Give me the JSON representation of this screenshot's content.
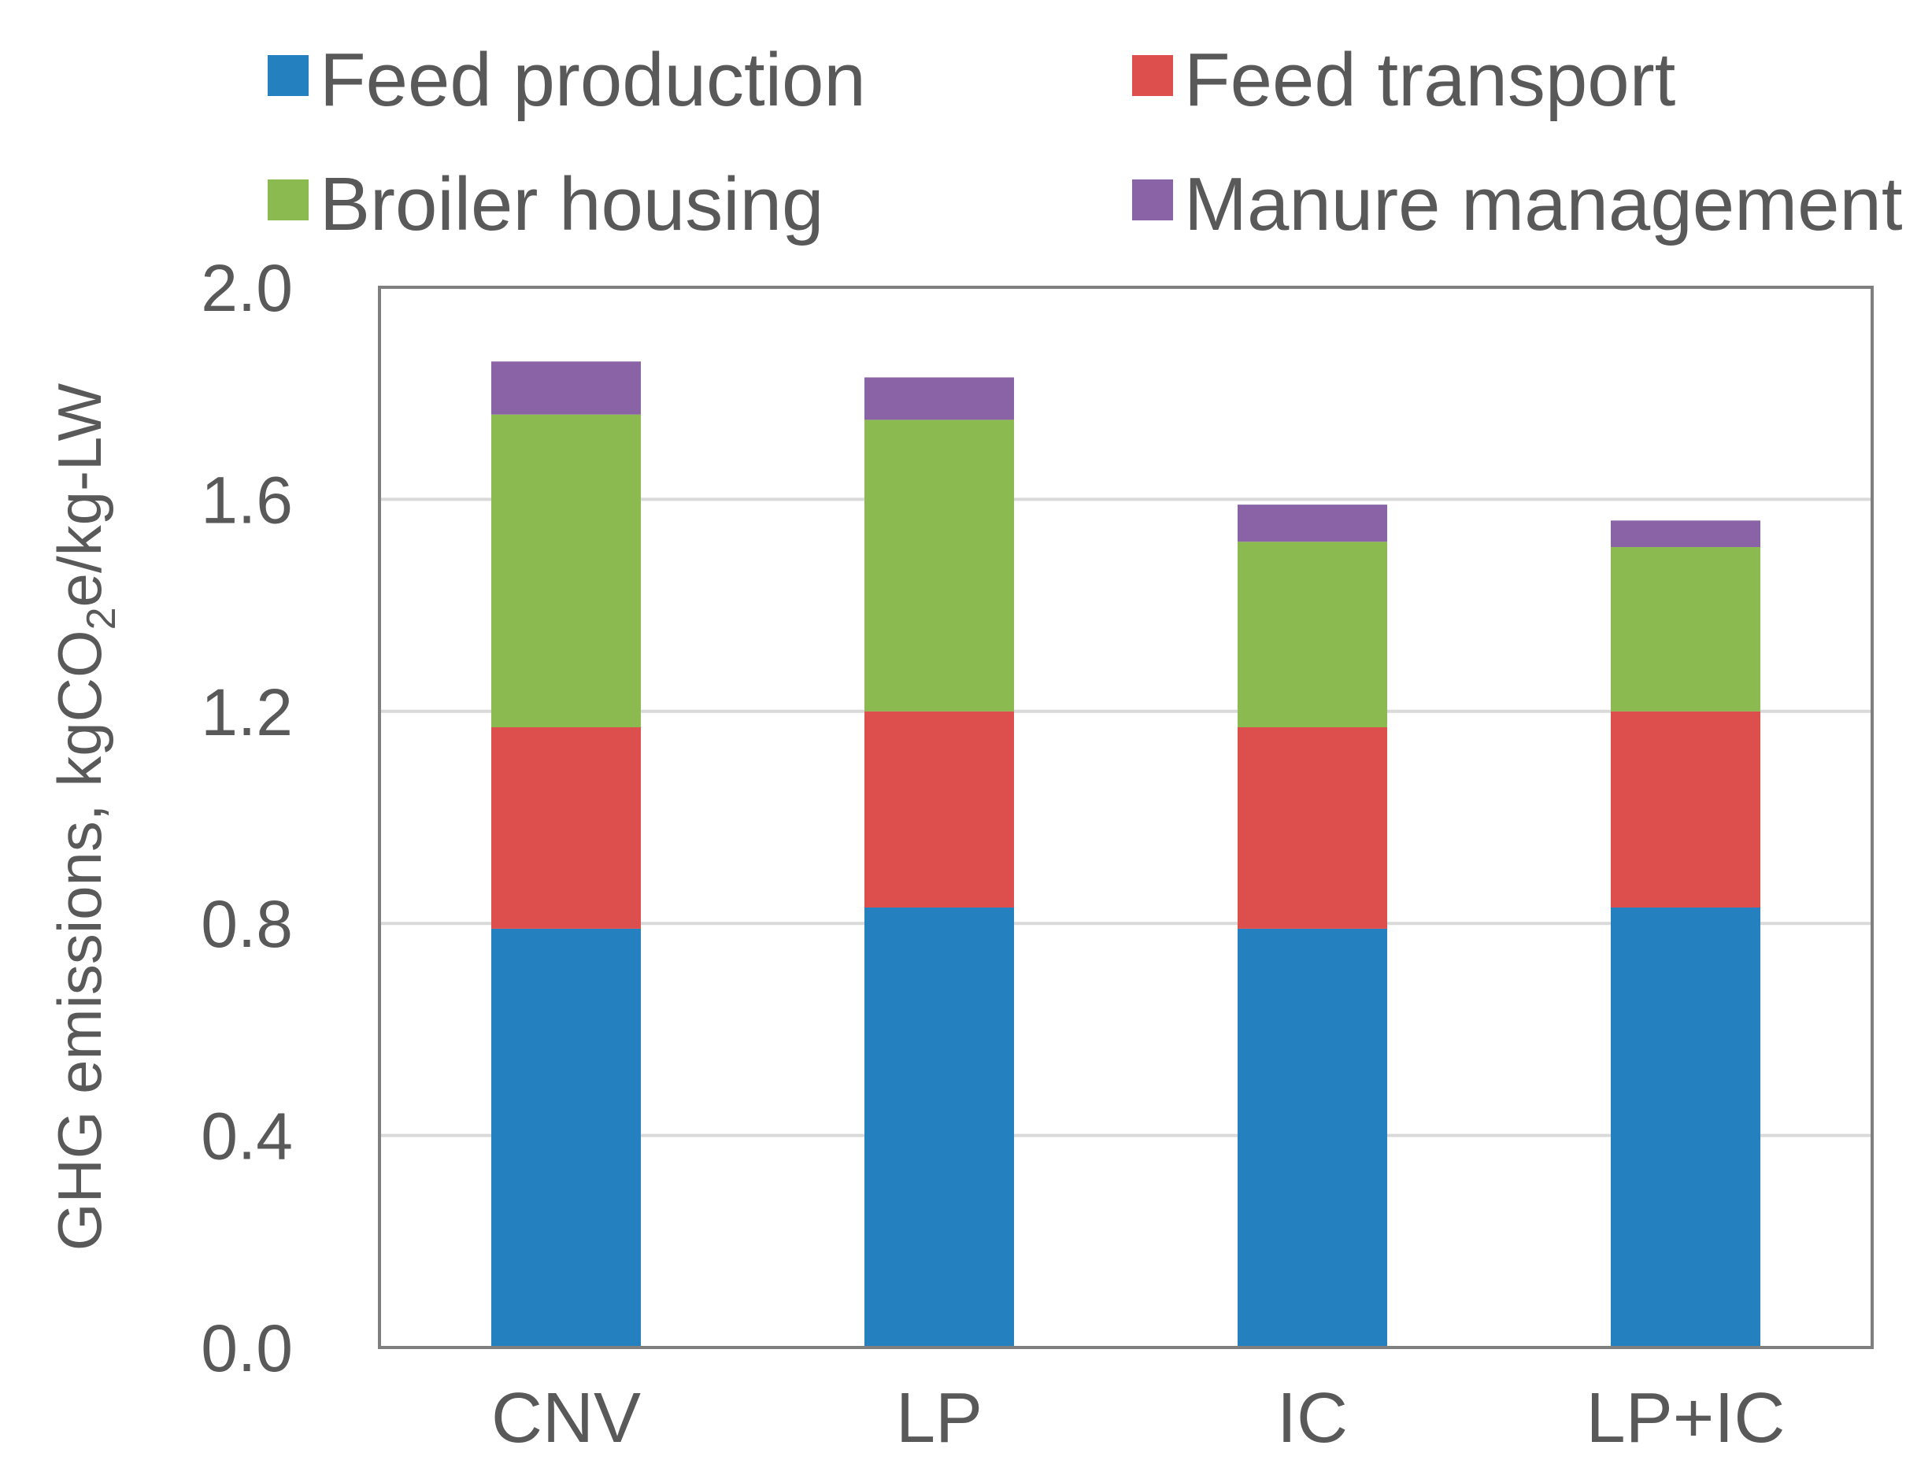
{
  "chart_data": {
    "type": "bar",
    "stacked": true,
    "categories": [
      "CNV",
      "LP",
      "IC",
      "LP+IC"
    ],
    "series": [
      {
        "name": "Feed production",
        "color": "#2580C0",
        "values": [
          0.79,
          0.83,
          0.79,
          0.83
        ]
      },
      {
        "name": "Feed transport",
        "color": "#DD4F4D",
        "values": [
          0.38,
          0.37,
          0.38,
          0.37
        ]
      },
      {
        "name": "Broiler housing",
        "color": "#8BBA50",
        "values": [
          0.59,
          0.55,
          0.35,
          0.31
        ]
      },
      {
        "name": "Manure management",
        "color": "#8963A5",
        "values": [
          0.1,
          0.08,
          0.07,
          0.05
        ]
      }
    ],
    "ylabel_parts": {
      "main": "GHG emissions, kgCO",
      "sub": "2",
      "tail": "e/kg-LW"
    },
    "xlabel": "",
    "ylim": [
      0,
      2.0
    ],
    "yticks": [
      "0.0",
      "0.4",
      "0.8",
      "1.2",
      "1.6",
      "2.0"
    ],
    "grid": true,
    "legend_position": "top"
  }
}
